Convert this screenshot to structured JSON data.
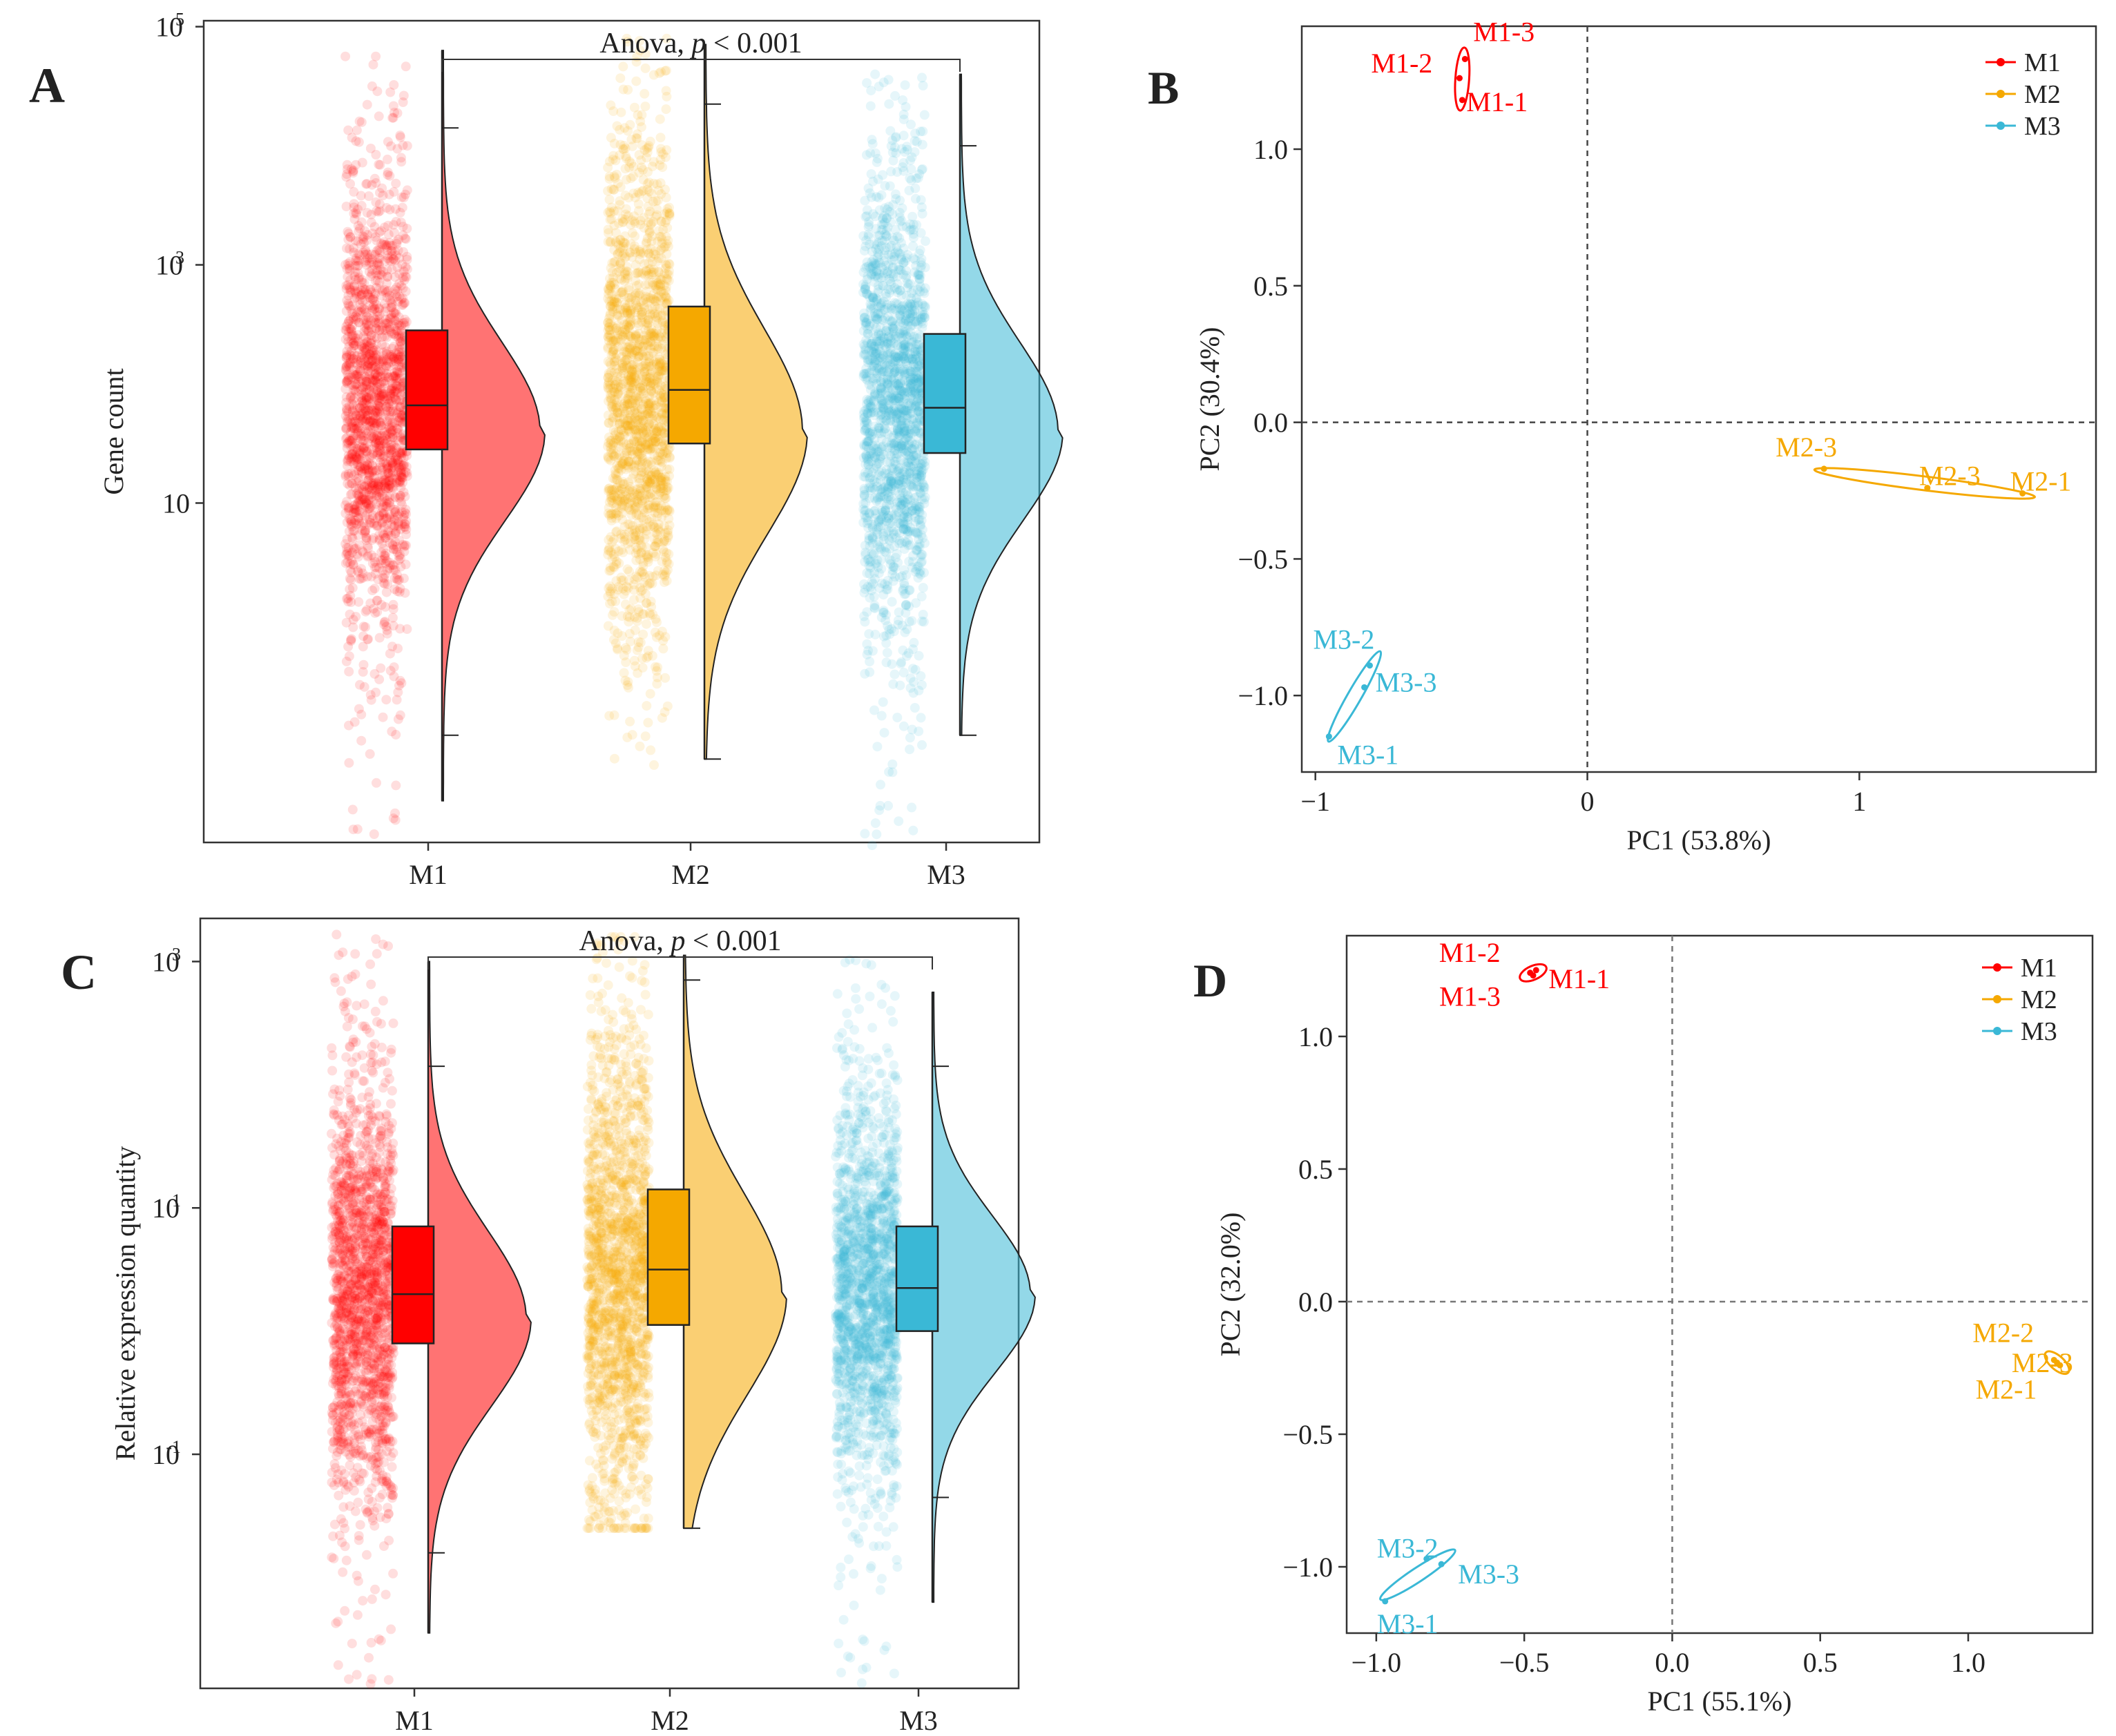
{
  "colors": {
    "M1": "#ff0000",
    "M2": "#f5a800",
    "M3": "#3ab8d6",
    "ink": "#222222"
  },
  "chart_data": [
    {
      "id": "A",
      "panel_label": "A",
      "type": "raincloud",
      "scale": "log10",
      "ylabel": "Gene count",
      "xlabel": "",
      "categories": [
        "M1",
        "M2",
        "M3"
      ],
      "ylim_log10": [
        -1.85,
        5.05
      ],
      "y_ticks": [
        {
          "label": "10",
          "exp": "",
          "log": 1
        },
        {
          "label": "10",
          "exp": "3",
          "log": 3
        },
        {
          "label": "10",
          "exp": "5",
          "log": 5
        }
      ],
      "annotation": {
        "text": "Anova, ",
        "p_symbol": "p",
        "rest": " < 0.001"
      },
      "groups": [
        {
          "name": "M1",
          "whisker_log": [
            -1.5,
            4.8
          ],
          "box_log": [
            1.45,
            2.45
          ],
          "median_log": 1.82,
          "caps_log": [
            -0.95,
            4.15
          ],
          "mode_log": 1.6,
          "points_log": [
            -1.9,
            4.75
          ]
        },
        {
          "name": "M2",
          "whisker_log": [
            -1.15,
            4.85
          ],
          "box_log": [
            1.5,
            2.65
          ],
          "median_log": 1.95,
          "caps_log": [
            -1.15,
            4.35
          ],
          "mode_log": 1.6,
          "points_log": [
            -1.2,
            4.9
          ]
        },
        {
          "name": "M3",
          "whisker_log": [
            -0.95,
            4.6
          ],
          "box_log": [
            1.42,
            2.42
          ],
          "median_log": 1.8,
          "caps_log": [
            -0.95,
            4.0
          ],
          "mode_log": 1.6,
          "points_log": [
            -1.9,
            4.6
          ]
        }
      ]
    },
    {
      "id": "C",
      "panel_label": "C",
      "type": "raincloud",
      "scale": "log10",
      "ylabel": "Relative expression quantity",
      "xlabel": "",
      "categories": [
        "M1",
        "M2",
        "M3"
      ],
      "ylim_log10": [
        -2.9,
        3.35
      ],
      "y_ticks": [
        {
          "label": "10",
          "exp": "-1",
          "log": -1
        },
        {
          "label": "10",
          "exp": "1",
          "log": 1
        },
        {
          "label": "10",
          "exp": "3",
          "log": 3
        }
      ],
      "annotation": {
        "text": "Anova, ",
        "p_symbol": "p",
        "rest": " < 0.001"
      },
      "groups": [
        {
          "name": "M1",
          "whisker_log": [
            -2.45,
            3.0
          ],
          "box_log": [
            -0.1,
            0.85
          ],
          "median_log": 0.3,
          "caps_log": [
            -1.8,
            2.15
          ],
          "mode_log": 0.1,
          "points_log": [
            -2.9,
            3.25
          ]
        },
        {
          "name": "M2",
          "whisker_log": [
            -1.6,
            3.05
          ],
          "box_log": [
            0.05,
            1.15
          ],
          "median_log": 0.5,
          "caps_log": [
            -1.6,
            2.85
          ],
          "mode_log": 0.3,
          "points_log": [
            -1.6,
            3.2
          ]
        },
        {
          "name": "M3",
          "whisker_log": [
            -2.2,
            2.75
          ],
          "box_log": [
            0.0,
            0.85
          ],
          "median_log": 0.35,
          "caps_log": [
            -1.35,
            2.15
          ],
          "mode_log": 0.3,
          "points_log": [
            -2.9,
            3.05
          ]
        }
      ]
    },
    {
      "id": "B",
      "panel_label": "B",
      "type": "scatter",
      "title": "",
      "xlabel": "PC1 (53.8%)",
      "ylabel": "PC2 (30.4%)",
      "xlim": [
        -1.05,
        1.87
      ],
      "ylim": [
        -1.28,
        1.45
      ],
      "x_ticks": [
        {
          "v": -1,
          "label": "−1"
        },
        {
          "v": 0,
          "label": "0"
        },
        {
          "v": 1,
          "label": "1"
        }
      ],
      "y_ticks": [
        {
          "v": -1.0,
          "label": "−1.0"
        },
        {
          "v": -0.5,
          "label": "−0.5"
        },
        {
          "v": 0.0,
          "label": "0.0"
        },
        {
          "v": 0.5,
          "label": "0.5"
        },
        {
          "v": 1.0,
          "label": "1.0"
        }
      ],
      "legend": [
        "M1",
        "M2",
        "M3"
      ],
      "legend_position": "top-right",
      "series": [
        {
          "name": "M1",
          "points": [
            {
              "label": "M1-1",
              "x": -0.46,
              "y": 1.18
            },
            {
              "label": "M1-2",
              "x": -0.47,
              "y": 1.26
            },
            {
              "label": "M1-3",
              "x": -0.45,
              "y": 1.33
            }
          ]
        },
        {
          "name": "M2",
          "points": [
            {
              "label": "M2-1",
              "x": 1.6,
              "y": -0.26
            },
            {
              "label": "M2-3",
              "x": 1.25,
              "y": -0.24
            },
            {
              "label": "M2-3",
              "x": 0.87,
              "y": -0.17
            }
          ]
        },
        {
          "name": "M3",
          "points": [
            {
              "label": "M3-1",
              "x": -0.95,
              "y": -1.15
            },
            {
              "label": "M3-2",
              "x": -0.8,
              "y": -0.89
            },
            {
              "label": "M3-3",
              "x": -0.82,
              "y": -0.97
            }
          ]
        }
      ]
    },
    {
      "id": "D",
      "panel_label": "D",
      "type": "scatter",
      "title": "",
      "xlabel": "PC1 (55.1%)",
      "ylabel": "PC2 (32.0%)",
      "xlim": [
        -1.1,
        1.42
      ],
      "ylim": [
        -1.25,
        1.38
      ],
      "x_ticks": [
        {
          "v": -1.0,
          "label": "−1.0"
        },
        {
          "v": -0.5,
          "label": "−0.5"
        },
        {
          "v": 0.0,
          "label": "0.0"
        },
        {
          "v": 0.5,
          "label": "0.5"
        },
        {
          "v": 1.0,
          "label": "1.0"
        }
      ],
      "y_ticks": [
        {
          "v": -1.0,
          "label": "−1.0"
        },
        {
          "v": -0.5,
          "label": "−0.5"
        },
        {
          "v": 0.0,
          "label": "0.0"
        },
        {
          "v": 0.5,
          "label": "0.5"
        },
        {
          "v": 1.0,
          "label": "1.0"
        }
      ],
      "legend": [
        "M1",
        "M2",
        "M3"
      ],
      "legend_position": "top-right",
      "series": [
        {
          "name": "M1",
          "points": [
            {
              "label": "M1-1",
              "x": -0.46,
              "y": 1.25
            },
            {
              "label": "M1-2",
              "x": -0.48,
              "y": 1.24
            },
            {
              "label": "M1-3",
              "x": -0.47,
              "y": 1.23
            }
          ]
        },
        {
          "name": "M2",
          "points": [
            {
              "label": "M2-1",
              "x": 1.3,
              "y": -0.23
            },
            {
              "label": "M2-2",
              "x": 1.29,
              "y": -0.22
            },
            {
              "label": "M2-3",
              "x": 1.31,
              "y": -0.24
            }
          ]
        },
        {
          "name": "M3",
          "points": [
            {
              "label": "M3-1",
              "x": -0.97,
              "y": -1.13
            },
            {
              "label": "M3-2",
              "x": -0.83,
              "y": -0.97
            },
            {
              "label": "M3-3",
              "x": -0.78,
              "y": -0.99
            }
          ]
        }
      ]
    }
  ]
}
